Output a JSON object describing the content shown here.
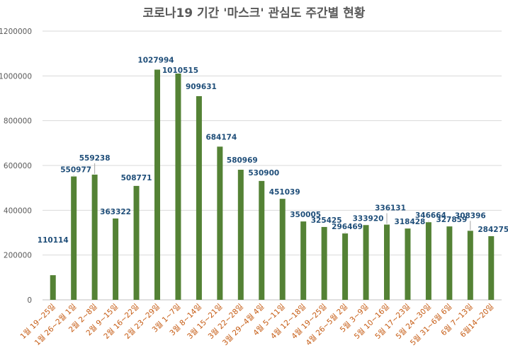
{
  "chart_data": {
    "type": "bar",
    "title": "코로나19 기간 '마스크' 관심도 주간별 현황",
    "xlabel": "",
    "ylabel": "",
    "ylim": [
      0,
      1200000
    ],
    "yticks": [
      0,
      200000,
      400000,
      600000,
      800000,
      1000000,
      1200000
    ],
    "grid": true,
    "legend": "none",
    "colors": {
      "bar": "#548235",
      "data_label": "#1F4E79",
      "tick_x": "#C55A11",
      "tick_y": "#595959",
      "grid": "#D9D9D9"
    },
    "categories": [
      "1월 19~25일",
      "1월 26~2월 1일",
      "2월 2~8일",
      "2월 9~15일",
      "2월 16~22일",
      "2월 23~29일",
      "3월 1~7일",
      "3월 8~14일",
      "3월 15~21일",
      "3월 22~28일",
      "3월 29~4월 4일",
      "4월 5~11일",
      "4월 12~18일",
      "4월 19~25일",
      "4월 26~5월 2일",
      "5월 3~9일",
      "5월 10~16일",
      "5월 17~23일",
      "5월 24~30일",
      "5월 31~6월 6일",
      "6월 7~13일",
      "6월14~20일"
    ],
    "values": [
      110114,
      550977,
      559238,
      363322,
      508771,
      1027994,
      1010515,
      909631,
      684174,
      580969,
      530900,
      451039,
      350005,
      325425,
      296469,
      333920,
      336131,
      318428,
      346664,
      327859,
      308396,
      284275
    ]
  }
}
